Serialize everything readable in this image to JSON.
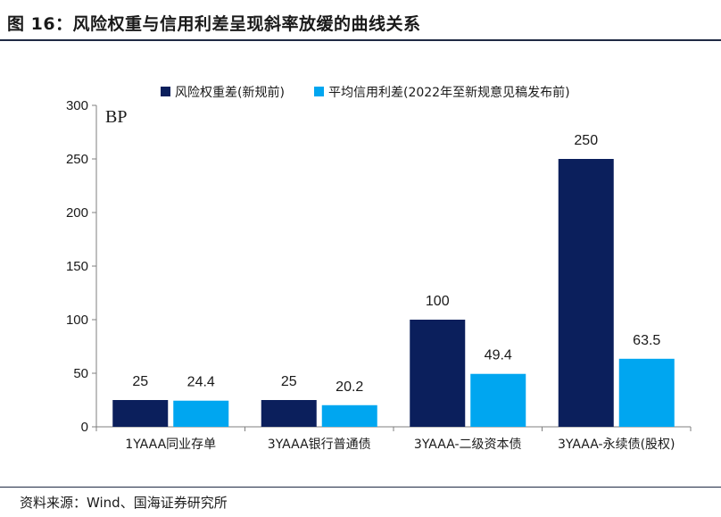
{
  "figure": {
    "title": "图 16：风险权重与信用利差呈现斜率放缓的曲线关系",
    "source": "资料来源：Wind、国海证券研究所"
  },
  "chart_data": {
    "type": "bar",
    "title": "",
    "xlabel": "",
    "ylabel": "",
    "unit_label": "BP",
    "categories": [
      "1YAAA同业存单",
      "3YAAA银行普通债",
      "3YAAA-二级资本债",
      "3YAAA-永续债(股权)"
    ],
    "series": [
      {
        "name": "风险权重差(新规前)",
        "values": [
          25,
          25,
          100,
          250
        ],
        "color": "#0b1f5c"
      },
      {
        "name": "平均信用利差(2022年至新规意见稿发布前)",
        "values": [
          24.4,
          20.2,
          49.4,
          63.5
        ],
        "color": "#00a6f0"
      }
    ],
    "data_labels": [
      [
        "25",
        "25",
        "100",
        "250"
      ],
      [
        "24.4",
        "20.2",
        "49.4",
        "63.5"
      ]
    ],
    "yticks": [
      "0",
      "50",
      "100",
      "150",
      "200",
      "250",
      "300"
    ],
    "ylim": [
      0,
      300
    ],
    "grid": false,
    "legend_position": "top"
  }
}
